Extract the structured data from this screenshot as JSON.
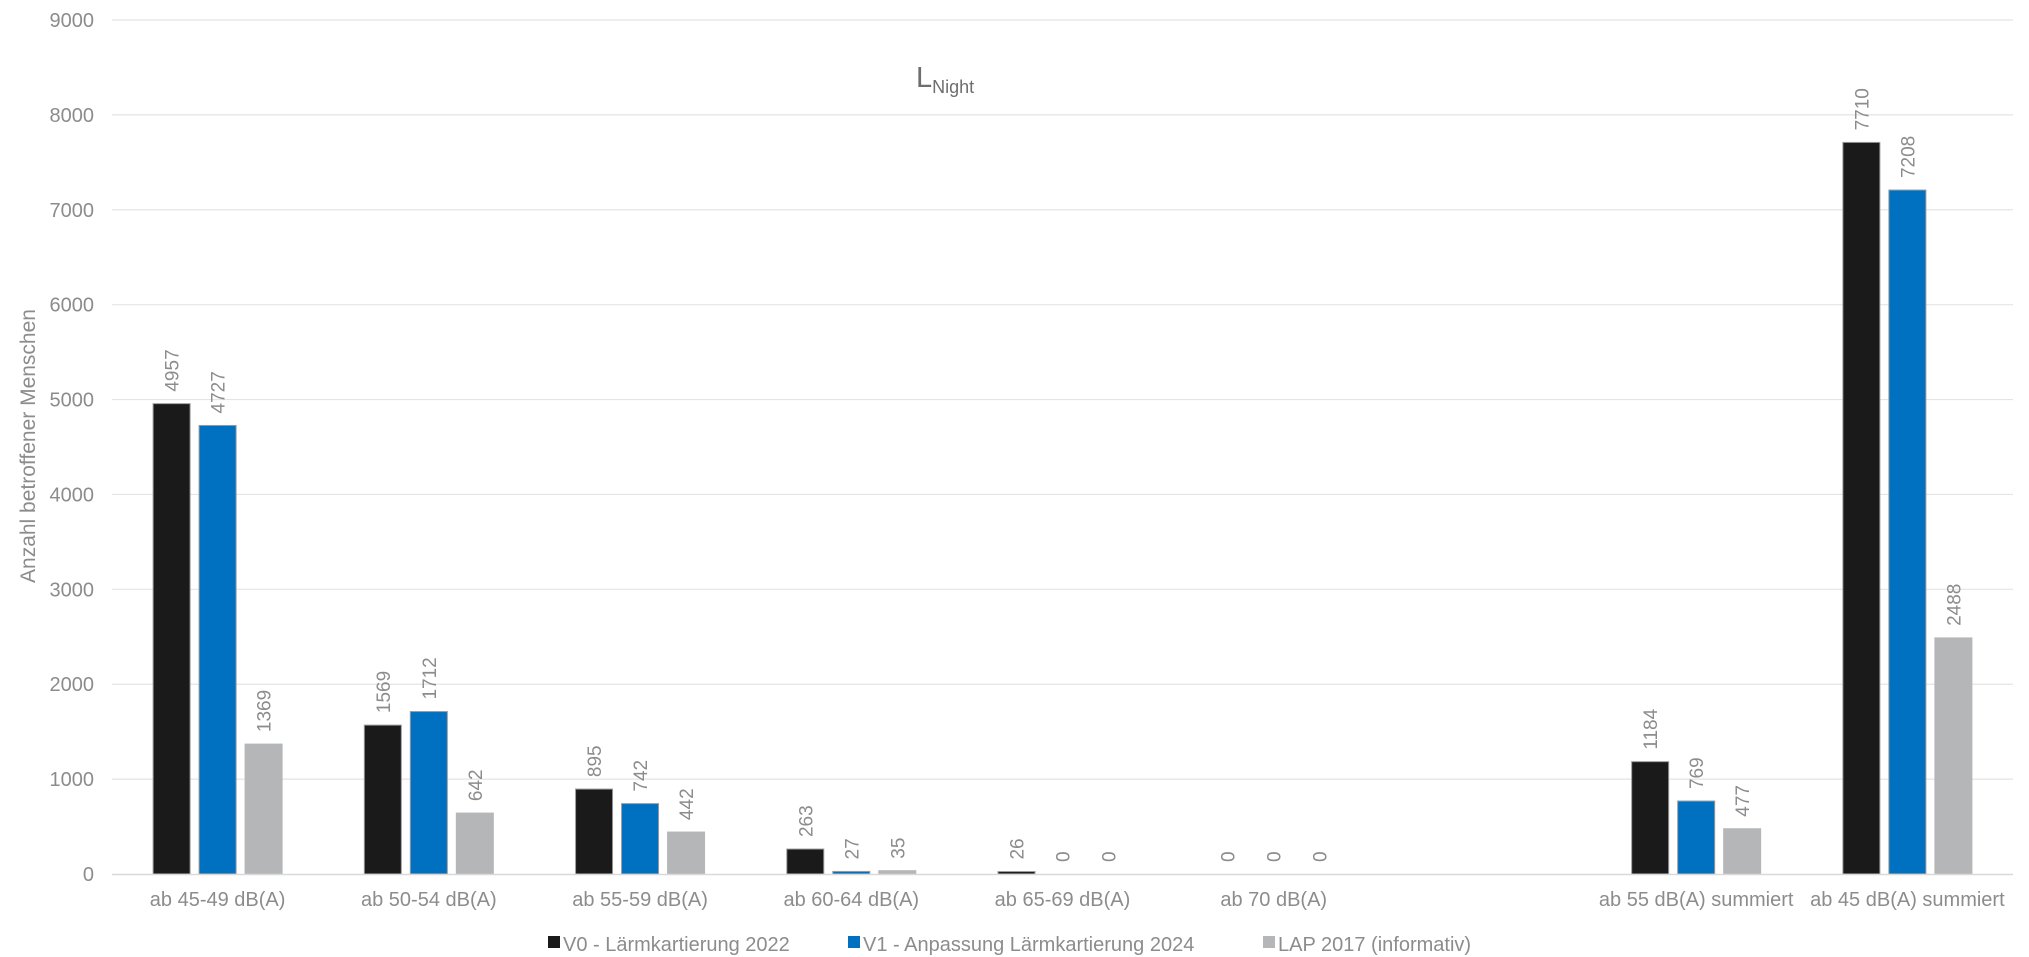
{
  "chart_data": {
    "type": "bar",
    "title_main": "L",
    "title_sub": "Night",
    "ylabel": "Anzahl betroffener Menschen",
    "xlabel": "",
    "ylim": [
      0,
      9000
    ],
    "yticks": [
      0,
      1000,
      2000,
      3000,
      4000,
      5000,
      6000,
      7000,
      8000,
      9000
    ],
    "grid": true,
    "legend_position": "bottom",
    "categories": [
      "ab 45-49 dB(A)",
      "ab 50-54 dB(A)",
      "ab 55-59 dB(A)",
      "ab 60-64 dB(A)",
      "ab 65-69 dB(A)",
      "ab 70 dB(A)",
      "",
      "ab 55 dB(A) summiert",
      "ab 45 dB(A) summiert"
    ],
    "series": [
      {
        "name": "V0 - Lärmkartierung 2022",
        "color": "#1a1a1a",
        "values": [
          4957,
          1569,
          895,
          263,
          26,
          0,
          null,
          1184,
          7710
        ]
      },
      {
        "name": "V1 - Anpassung Lärmkartierung 2024",
        "color": "#0070c0",
        "values": [
          4727,
          1712,
          742,
          27,
          0,
          0,
          null,
          769,
          7208
        ]
      },
      {
        "name": "LAP 2017 (informativ)",
        "color": "#b4b6b8",
        "values": [
          1369,
          642,
          442,
          35,
          0,
          0,
          null,
          477,
          2488
        ]
      }
    ]
  }
}
